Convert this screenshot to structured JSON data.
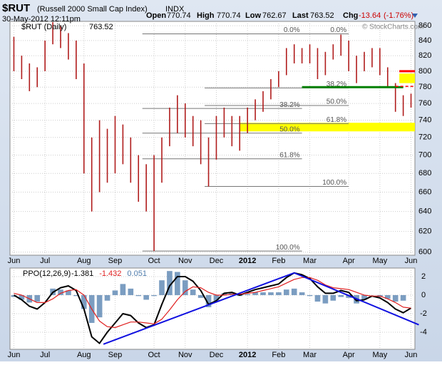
{
  "header": {
    "symbol": "$RUT",
    "name": "(Russell 2000 Small Cap Index)",
    "exchange": "INDX",
    "date": "30-May-2012 12:11pm",
    "quote": [
      {
        "label": "Open",
        "value": 770.74
      },
      {
        "label": "High",
        "value": 770.74
      },
      {
        "label": "Low",
        "value": 762.67
      },
      {
        "label": "Last",
        "value": 763.52
      }
    ],
    "change_label": "Chg",
    "change": -13.64,
    "change_pct": "(-1.76%)",
    "credit": "© StockCharts.com"
  },
  "chart_data": [
    {
      "type": "hilo",
      "log_scale": true,
      "grid": true,
      "color": "#b01c1c",
      "legend": {
        "name": "$RUT (Daily)",
        "value": 763.52
      },
      "categories": [
        "Jun",
        null,
        null,
        null,
        "Jul",
        null,
        null,
        null,
        null,
        "Aug",
        null,
        null,
        null,
        "Sep",
        null,
        null,
        null,
        null,
        "Oct",
        null,
        null,
        null,
        "Nov",
        null,
        null,
        null,
        "Dec",
        null,
        null,
        null,
        "2012",
        null,
        null,
        null,
        "Feb",
        null,
        null,
        null,
        "Mar",
        null,
        null,
        null,
        null,
        "Apr",
        null,
        null,
        null,
        "May",
        null,
        null,
        null,
        "Jun"
      ],
      "highs": [
        845,
        820,
        810,
        805,
        840,
        865,
        860,
        850,
        840,
        810,
        720,
        740,
        730,
        745,
        735,
        720,
        700,
        690,
        700,
        720,
        755,
        770,
        760,
        745,
        740,
        720,
        745,
        755,
        745,
        745,
        755,
        765,
        775,
        790,
        800,
        830,
        835,
        830,
        835,
        830,
        825,
        835,
        848,
        840,
        820,
        825,
        830,
        830,
        805,
        785,
        770,
        772
      ],
      "lows": [
        800,
        790,
        775,
        780,
        800,
        835,
        830,
        815,
        790,
        680,
        640,
        660,
        670,
        680,
        690,
        670,
        650,
        640,
        601,
        670,
        710,
        725,
        720,
        710,
        690,
        666,
        695,
        720,
        710,
        705,
        725,
        740,
        750,
        765,
        780,
        795,
        810,
        810,
        810,
        790,
        795,
        815,
        820,
        800,
        785,
        800,
        805,
        795,
        780,
        750,
        745,
        755
      ],
      "ylim": [
        597,
        866
      ],
      "yticks": [
        600,
        620,
        640,
        660,
        680,
        700,
        720,
        740,
        760,
        780,
        800,
        820,
        840,
        860
      ],
      "fib_sets": [
        {
          "from": 16.5,
          "to": 37,
          "levels": [
            {
              "label": "0.0%",
              "value": 849
            },
            {
              "label": "38.2%",
              "value": 754
            },
            {
              "label": "50.0%",
              "value": 725
            },
            {
              "label": "61.8%",
              "value": 696
            },
            {
              "label": "100.0%",
              "value": 601
            }
          ]
        },
        {
          "from": 24.5,
          "to": 43,
          "levels": [
            {
              "label": "0.0%",
              "value": 849
            },
            {
              "label": "38.2%",
              "value": 779
            },
            {
              "label": "50.0%",
              "value": 757.5
            },
            {
              "label": "61.8%",
              "value": 736
            },
            {
              "label": "100.0%",
              "value": 666
            }
          ]
        }
      ],
      "bands": [
        {
          "color": "#ffff00",
          "low": 727,
          "high": 737,
          "from": 29
        },
        {
          "color": "#ffff00",
          "low": 785,
          "high": 797,
          "from": 49.5
        }
      ],
      "levels": [
        {
          "color": "#008000",
          "value": 780,
          "from": 37,
          "to": 50,
          "dash": false
        },
        {
          "color": "#ff0000",
          "value": 781,
          "from": 49,
          "dash": true
        },
        {
          "color": "#ff0000",
          "value": 800,
          "from": 49.5,
          "dash": false
        }
      ]
    },
    {
      "type": "line",
      "grid": true,
      "name": "PPO(12,26,9)",
      "ylim": [
        -5.85,
        2.92
      ],
      "yticks": [
        -4,
        -2,
        0,
        2
      ],
      "series": [
        {
          "name": "-1.381",
          "color": "#000000",
          "values": [
            0,
            -0.5,
            -1.2,
            -1.5,
            -0.8,
            0.3,
            0.8,
            1.0,
            0.5,
            -1.5,
            -4.5,
            -5.2,
            -4.0,
            -3.0,
            -2.0,
            -2.2,
            -3.0,
            -3.5,
            -3.2,
            -1.0,
            1.0,
            2.0,
            2.0,
            1.5,
            0.5,
            -1.0,
            -0.6,
            0.2,
            0.3,
            0,
            0.3,
            0.6,
            0.8,
            1.0,
            1.2,
            1.9,
            2.4,
            2.2,
            1.8,
            0.9,
            0.2,
            0.2,
            0.5,
            0.3,
            -0.6,
            -0.5,
            -0.1,
            -0.3,
            -0.8,
            -1.5,
            -1.9,
            -1.4
          ]
        },
        {
          "name": "-1.432",
          "color": "#e02020",
          "values": [
            0.2,
            0,
            -0.4,
            -0.8,
            -0.8,
            -0.4,
            0.2,
            0.5,
            0.6,
            0,
            -1.5,
            -2.8,
            -3.4,
            -3.5,
            -3.2,
            -2.9,
            -2.9,
            -3.0,
            -3.1,
            -2.6,
            -1.6,
            -0.5,
            0.4,
            0.9,
            0.8,
            0.3,
            0,
            0,
            0.1,
            0.1,
            0.2,
            0.3,
            0.5,
            0.7,
            0.9,
            1.3,
            1.7,
            1.9,
            1.9,
            1.6,
            1.1,
            0.8,
            0.7,
            0.6,
            0.3,
            0,
            -0.1,
            -0.1,
            -0.4,
            -0.8,
            -1.3,
            -1.4
          ]
        },
        {
          "name": "0.051",
          "color": "#4f7cac",
          "kind": "histogram",
          "values": [
            -0.2,
            -0.5,
            -0.8,
            -0.7,
            0,
            0.7,
            0.6,
            0.5,
            -0.1,
            -1.5,
            -3.0,
            -2.4,
            -0.6,
            0.5,
            1.2,
            0.7,
            -0.1,
            -0.5,
            -0.1,
            1.6,
            2.6,
            2.5,
            1.6,
            0.6,
            -0.3,
            -1.3,
            -0.6,
            0.2,
            0.2,
            -0.1,
            0.1,
            0.3,
            0.3,
            0.3,
            0.3,
            0.6,
            0.7,
            0.3,
            -0.1,
            -0.7,
            -0.9,
            -0.6,
            -0.2,
            -0.3,
            -0.9,
            -0.5,
            0,
            -0.2,
            -0.4,
            -0.7,
            -0.6,
            0
          ]
        }
      ],
      "trendlines": [
        {
          "color": "#1010e0",
          "from": [
            11.5,
            -5.3
          ],
          "to": [
            36,
            2.4
          ]
        },
        {
          "color": "#1010e0",
          "from": [
            36,
            2.4
          ],
          "to": [
            52,
            -3.2
          ]
        }
      ]
    }
  ]
}
